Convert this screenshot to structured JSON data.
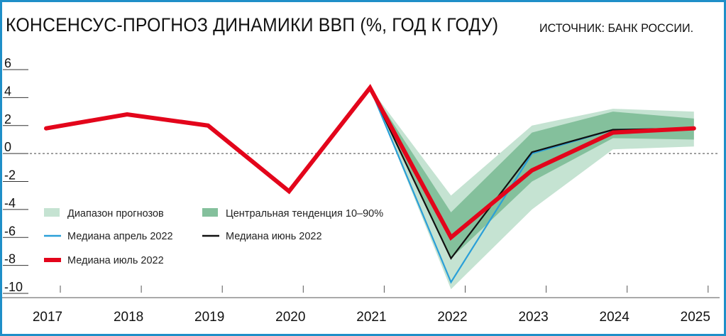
{
  "title": "КОНСЕНСУС-ПРОГНОЗ ДИНАМИКИ ВВП (%, ГОД К ГОДУ)",
  "source": "ИСТОЧНИК: БАНК РОССИИ.",
  "colors": {
    "frame": "#1f8fc8",
    "range": "#c5e3d2",
    "central": "#84c09c",
    "median_april": "#2a9fd8",
    "median_june": "#111111",
    "median_july": "#e3051b"
  },
  "chart_data": {
    "type": "line",
    "x": [
      "2017",
      "2018",
      "2019",
      "2020",
      "2021",
      "2022",
      "2023",
      "2024",
      "2025"
    ],
    "ylim": [
      -10,
      6
    ],
    "yticks": [
      "6",
      "4",
      "2",
      "0",
      "-2",
      "-4",
      "-6",
      "-8",
      "-10"
    ],
    "zero_line": "dashed",
    "legend_position": "bottom-left",
    "bands": [
      {
        "name": "Диапазон прогнозов",
        "color": "#c5e3d2",
        "x": [
          "2021",
          "2022",
          "2023",
          "2024",
          "2025"
        ],
        "low": [
          4.7,
          -9.7,
          -4.0,
          0.3,
          0.5
        ],
        "high": [
          4.7,
          -3.0,
          2.0,
          3.2,
          3.0
        ]
      },
      {
        "name": "Центральная тенденция 10–90%",
        "color": "#84c09c",
        "x": [
          "2021",
          "2022",
          "2023",
          "2024",
          "2025"
        ],
        "low": [
          4.7,
          -7.5,
          -2.0,
          1.1,
          1.0
        ],
        "high": [
          4.7,
          -4.2,
          1.5,
          3.0,
          2.5
        ]
      }
    ],
    "series": [
      {
        "name": "Медиана апрель 2022",
        "color": "#2a9fd8",
        "x": [
          "2021",
          "2022",
          "2023",
          "2024",
          "2025"
        ],
        "values": [
          4.7,
          -9.2,
          0.0,
          1.7,
          1.8
        ]
      },
      {
        "name": "Медиана июнь 2022",
        "color": "#111111",
        "x": [
          "2021",
          "2022",
          "2023",
          "2024",
          "2025"
        ],
        "values": [
          4.7,
          -7.5,
          0.1,
          1.7,
          1.8
        ]
      },
      {
        "name": "Медиана июль 2022",
        "color": "#e3051b",
        "x": [
          "2017",
          "2018",
          "2019",
          "2020",
          "2021",
          "2022",
          "2023",
          "2024",
          "2025"
        ],
        "values": [
          1.8,
          2.8,
          2.0,
          -2.7,
          4.7,
          -6.0,
          -1.2,
          1.5,
          1.8
        ]
      }
    ],
    "legend": [
      "Диапазон прогнозов",
      "Центральная тенденция 10–90%",
      "Медиана апрель 2022",
      "Медиана июнь 2022",
      "Медиана июль 2022"
    ]
  }
}
